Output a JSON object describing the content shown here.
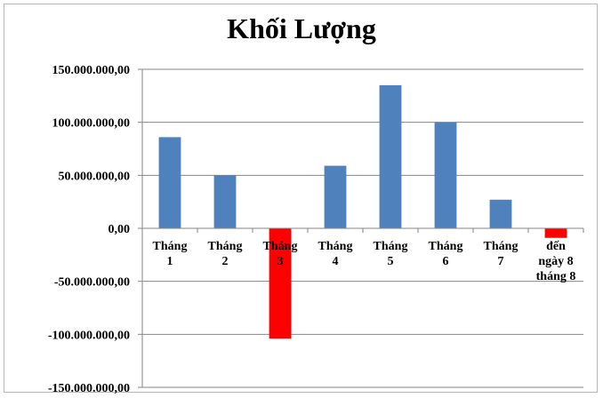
{
  "chart_data": {
    "type": "bar",
    "title": "Khối Lượng",
    "categories": [
      [
        "Tháng",
        "1"
      ],
      [
        "Tháng",
        "2"
      ],
      [
        "Tháng",
        "3"
      ],
      [
        "Tháng",
        "4"
      ],
      [
        "Tháng",
        "5"
      ],
      [
        "Tháng",
        "6"
      ],
      [
        "Tháng",
        "7"
      ],
      [
        "đến",
        "ngày 8",
        "tháng 8"
      ]
    ],
    "values": [
      86000000,
      50000000,
      -104000000,
      59000000,
      135000000,
      100000000,
      27000000,
      -9000000
    ],
    "ylim": [
      -150000000,
      150000000
    ],
    "yticks": [
      150000000,
      100000000,
      50000000,
      0,
      -50000000,
      -100000000,
      -150000000
    ],
    "ytick_labels": [
      "150.000.000,00",
      "100.000.000,00",
      "50.000.000,00",
      "0,00",
      "-50.000.000,00",
      "-100.000.000,00",
      "-150.000.000,00"
    ],
    "grid": true,
    "legend": "none",
    "colors": {
      "positive": "#4f81bd",
      "negative": "#ff0000",
      "grid": "#868686",
      "axis": "#868686"
    }
  }
}
